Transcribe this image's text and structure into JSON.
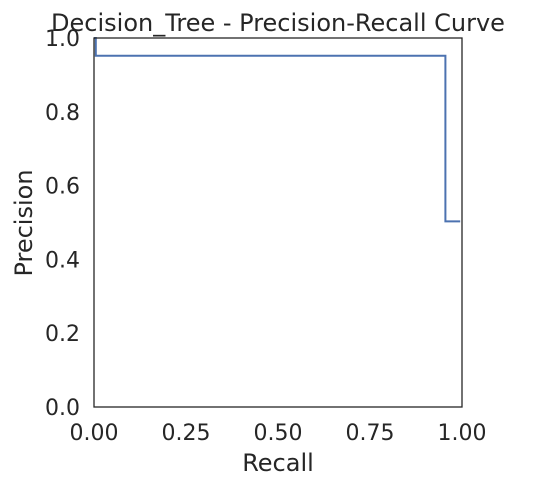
{
  "chart_data": {
    "type": "line",
    "title": "Decision_Tree - Precision-Recall Curve",
    "xlabel": "Recall",
    "ylabel": "Precision",
    "xlim": [
      0.0,
      1.0
    ],
    "ylim": [
      0.0,
      1.0
    ],
    "xticks": [
      0.0,
      0.25,
      0.5,
      0.75,
      1.0
    ],
    "xtick_labels": [
      "0.00",
      "0.25",
      "0.50",
      "0.75",
      "1.00"
    ],
    "yticks": [
      0.0,
      0.2,
      0.4,
      0.6,
      0.8,
      1.0
    ],
    "ytick_labels": [
      "0.0",
      "0.2",
      "0.4",
      "0.6",
      "0.8",
      "1.0"
    ],
    "grid": false,
    "step": true,
    "series": [
      {
        "color": "#4c72b0",
        "x": [
          0.0,
          0.005,
          0.005,
          0.955,
          0.955,
          0.995
        ],
        "y": [
          1.0,
          1.0,
          0.952,
          0.952,
          0.503,
          0.503
        ]
      }
    ]
  }
}
